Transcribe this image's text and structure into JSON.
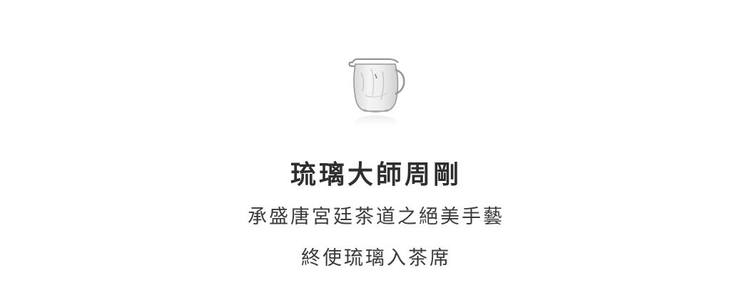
{
  "image": {
    "icon": "glass-pitcher-icon"
  },
  "text": {
    "title": "琉璃大師周剛",
    "line1": "承盛唐宮廷茶道之絕美手藝",
    "line2": "終使琉璃入茶席"
  },
  "colors": {
    "background": "#ffffff",
    "text": "#333333"
  }
}
